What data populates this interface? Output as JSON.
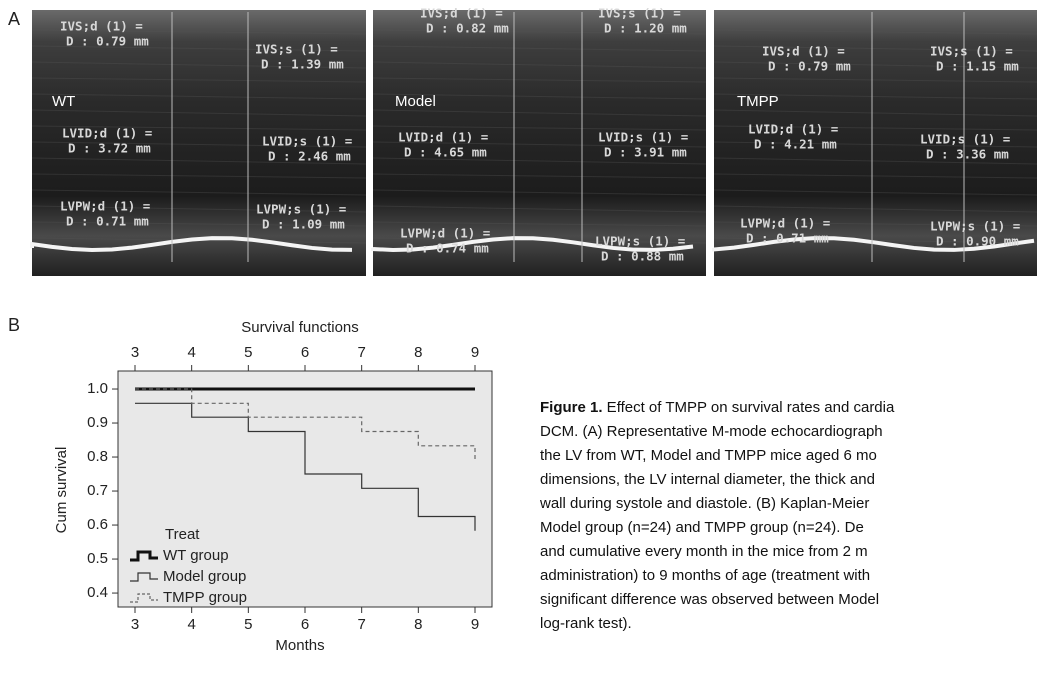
{
  "panel_a": {
    "label": "A",
    "images": [
      {
        "label": "WT",
        "measurements": [
          {
            "name": "IVS;d (1) =",
            "value": "D : 0.79 mm"
          },
          {
            "name": "IVS;s (1) =",
            "value": "D : 1.39 mm"
          },
          {
            "name": "LVID;d (1) =",
            "value": "D : 3.72 mm"
          },
          {
            "name": "LVID;s (1) =",
            "value": "D : 2.46 mm"
          },
          {
            "name": "LVPW;d (1) =",
            "value": "D : 0.71 mm"
          },
          {
            "name": "LVPW;s (1) =",
            "value": "D : 1.09 mm"
          }
        ]
      },
      {
        "label": "Model",
        "measurements": [
          {
            "name": "IVS;d (1) =",
            "value": "D : 0.82 mm"
          },
          {
            "name": "IVS;s (1) =",
            "value": "D : 1.20 mm"
          },
          {
            "name": "LVID;d (1) =",
            "value": "D : 4.65 mm"
          },
          {
            "name": "LVID;s (1) =",
            "value": "D : 3.91 mm"
          },
          {
            "name": "LVPW;d (1) =",
            "value": "D : 0.74 mm"
          },
          {
            "name": "LVPW;s (1) =",
            "value": "D : 0.88 mm"
          }
        ]
      },
      {
        "label": "TMPP",
        "measurements": [
          {
            "name": "IVS;d (1) =",
            "value": "D : 0.79 mm"
          },
          {
            "name": "IVS;s (1) =",
            "value": "D : 1.15 mm"
          },
          {
            "name": "LVID;d (1) =",
            "value": "D : 4.21 mm"
          },
          {
            "name": "LVID;s (1) =",
            "value": "D : 3.36 mm"
          },
          {
            "name": "LVPW;d (1) =",
            "value": "D : 0.71 mm"
          },
          {
            "name": "LVPW;s (1) =",
            "value": "D : 0.90 mm"
          }
        ]
      }
    ]
  },
  "panel_b": {
    "label": "B"
  },
  "chart_data": {
    "type": "step",
    "title": "Survival functions",
    "x_label": "Months",
    "y_label": "Cum survival",
    "legend_title": "Treat",
    "x": [
      3,
      4,
      5,
      6,
      7,
      8,
      9
    ],
    "series": [
      {
        "name": "WT group",
        "color": "#111111",
        "width": 3,
        "dashed": false,
        "values": [
          1.0,
          1.0,
          1.0,
          1.0,
          1.0,
          1.0,
          1.0
        ]
      },
      {
        "name": "Model group",
        "color": "#333333",
        "width": 1.2,
        "dashed": false,
        "values": [
          0.958,
          0.917,
          0.875,
          0.75,
          0.708,
          0.625,
          0.583
        ]
      },
      {
        "name": "TMPP group",
        "color": "#666666",
        "width": 1.2,
        "dashed": true,
        "values": [
          1.0,
          0.958,
          0.917,
          0.917,
          0.875,
          0.833,
          0.792
        ]
      }
    ],
    "xlim": [
      2.7,
      9.3
    ],
    "ylim": [
      0.359,
      1.053
    ],
    "xticks": [
      3,
      4,
      5,
      6,
      7,
      8,
      9
    ],
    "yticks": [
      {
        "value": 0.4,
        "label": "0.4"
      },
      {
        "value": 0.5,
        "label": "0.5"
      },
      {
        "value": 0.6,
        "label": "0.6"
      },
      {
        "value": 0.7,
        "label": "0.7"
      },
      {
        "value": 0.8,
        "label": "0.8"
      },
      {
        "value": 0.9,
        "label": "0.9"
      },
      {
        "value": 1.0,
        "label": "1.0"
      }
    ]
  },
  "caption": {
    "figure_label": "Figure 1.",
    "lines": [
      " Effect of TMPP on survival rates and cardia",
      "DCM.  (A) Representative M-mode echocardiograph",
      "the LV from WT, Model and TMPP mice aged 6 mo",
      "dimensions, the LV internal diameter, the thick and",
      "wall during systole and diastole.  (B) Kaplan-Meier",
      "Model group (n=24) and TMPP group (n=24).  De",
      "and cumulative every month in the mice from 2 m",
      "administration) to 9 months of age (treatment with",
      "significant difference was observed between Model",
      "log-rank test)."
    ]
  }
}
